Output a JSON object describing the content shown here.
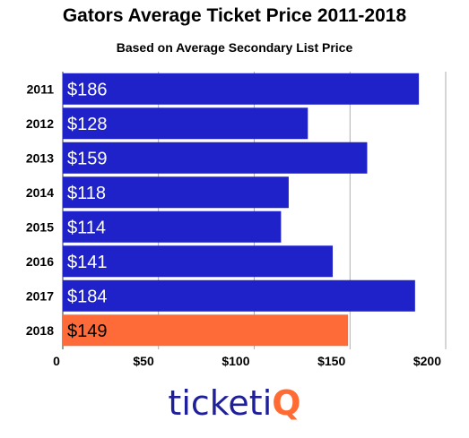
{
  "title": "Gators Average Ticket Price 2011-2018",
  "subtitle": "Based on Average Secondary List Price",
  "logo": {
    "part1": "ticket",
    "part2": "i",
    "part3": "Q"
  },
  "colors": {
    "bar": "#1f22c9",
    "highlight": "#ff6b38",
    "grid": "#999999"
  },
  "chart_data": {
    "type": "bar",
    "orientation": "horizontal",
    "title": "Gators Average Ticket Price 2011-2018",
    "subtitle": "Based on Average Secondary List Price",
    "categories": [
      "2011",
      "2012",
      "2013",
      "2014",
      "2015",
      "2016",
      "2017",
      "2018"
    ],
    "values": [
      186,
      128,
      159,
      118,
      114,
      141,
      184,
      149
    ],
    "data_labels": [
      "$186",
      "$128",
      "$159",
      "$118",
      "$114",
      "$141",
      "$184",
      "$149"
    ],
    "highlight_index": 7,
    "xlim": [
      0,
      200
    ],
    "xticks": [
      0,
      50,
      100,
      150,
      200
    ],
    "xtick_labels": [
      "0",
      "$50",
      "$100",
      "$150",
      "$200"
    ],
    "grid": true
  }
}
